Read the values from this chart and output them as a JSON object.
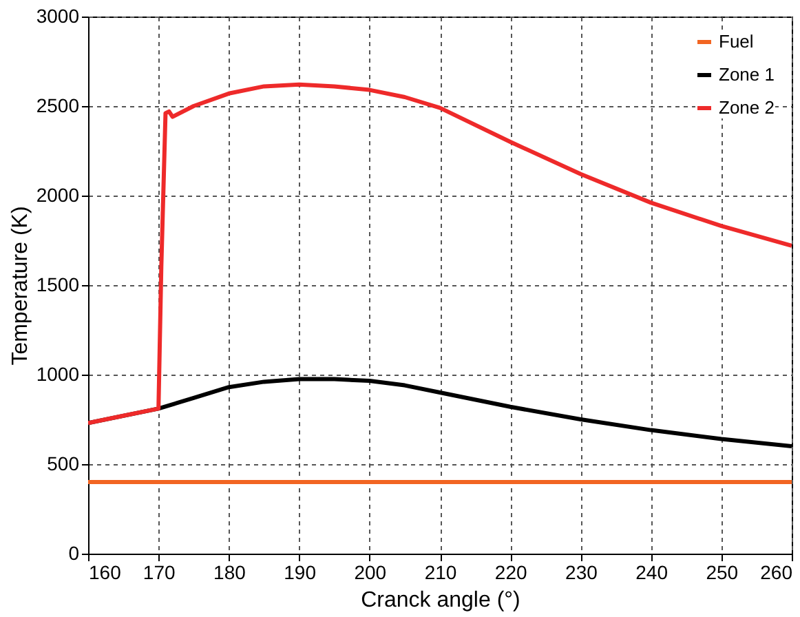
{
  "chart_data": {
    "type": "line",
    "xlabel": "Cranck angle (°)",
    "ylabel": "Temperature (K)",
    "xlim": [
      160,
      260
    ],
    "xticks": [
      160,
      170,
      180,
      190,
      200,
      210,
      220,
      230,
      240,
      250,
      260
    ],
    "ylim": [
      0,
      3000
    ],
    "yticks": [
      0,
      500,
      1000,
      1500,
      2000,
      2500,
      3000
    ],
    "grid": true,
    "legend": "top right",
    "marker": "none",
    "line_style": "solid",
    "series": [
      {
        "name": "Fuel",
        "color": "#f26522",
        "x": [
          160,
          260
        ],
        "values": [
          400,
          400
        ]
      },
      {
        "name": "Zone 1",
        "color": "#000000",
        "x": [
          160,
          170,
          175,
          180,
          185,
          190,
          195,
          200,
          205,
          210,
          220,
          230,
          240,
          250,
          260
        ],
        "values": [
          730,
          810,
          870,
          930,
          960,
          975,
          975,
          965,
          940,
          900,
          820,
          750,
          690,
          640,
          600
        ]
      },
      {
        "name": "Zone 2",
        "color": "#ee2a2a",
        "x": [
          160,
          165,
          170,
          170.4,
          171,
          171.5,
          172,
          175,
          180,
          185,
          190,
          195,
          200,
          205,
          210,
          220,
          230,
          240,
          250,
          260
        ],
        "values": [
          730,
          770,
          810,
          1600,
          2460,
          2470,
          2440,
          2500,
          2570,
          2610,
          2620,
          2610,
          2590,
          2550,
          2490,
          2300,
          2120,
          1960,
          1830,
          1720
        ]
      }
    ]
  }
}
